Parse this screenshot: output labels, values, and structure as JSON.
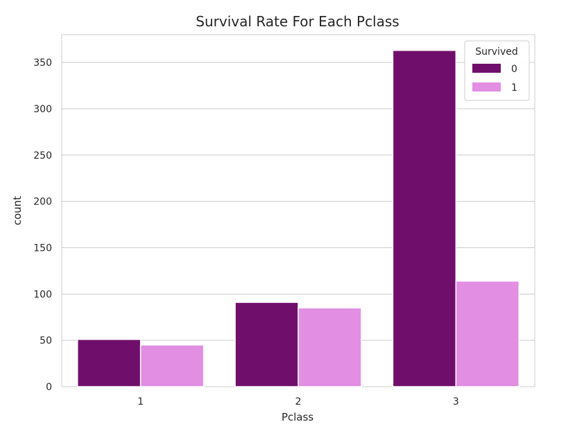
{
  "chart_data": {
    "type": "bar",
    "title": "Survival Rate For Each Pclass",
    "xlabel": "Pclass",
    "ylabel": "count",
    "categories": [
      "1",
      "2",
      "3"
    ],
    "series": [
      {
        "name": "0",
        "values": [
          51,
          91,
          363
        ],
        "color": "#700f6b"
      },
      {
        "name": "1",
        "values": [
          45,
          85,
          114
        ],
        "color": "#e18ee3"
      }
    ],
    "ylim": [
      0,
      380
    ],
    "yticks": [
      0,
      50,
      100,
      150,
      200,
      250,
      300,
      350
    ],
    "grid": true,
    "legend": {
      "title": "Survived",
      "placement": "top-right"
    }
  }
}
